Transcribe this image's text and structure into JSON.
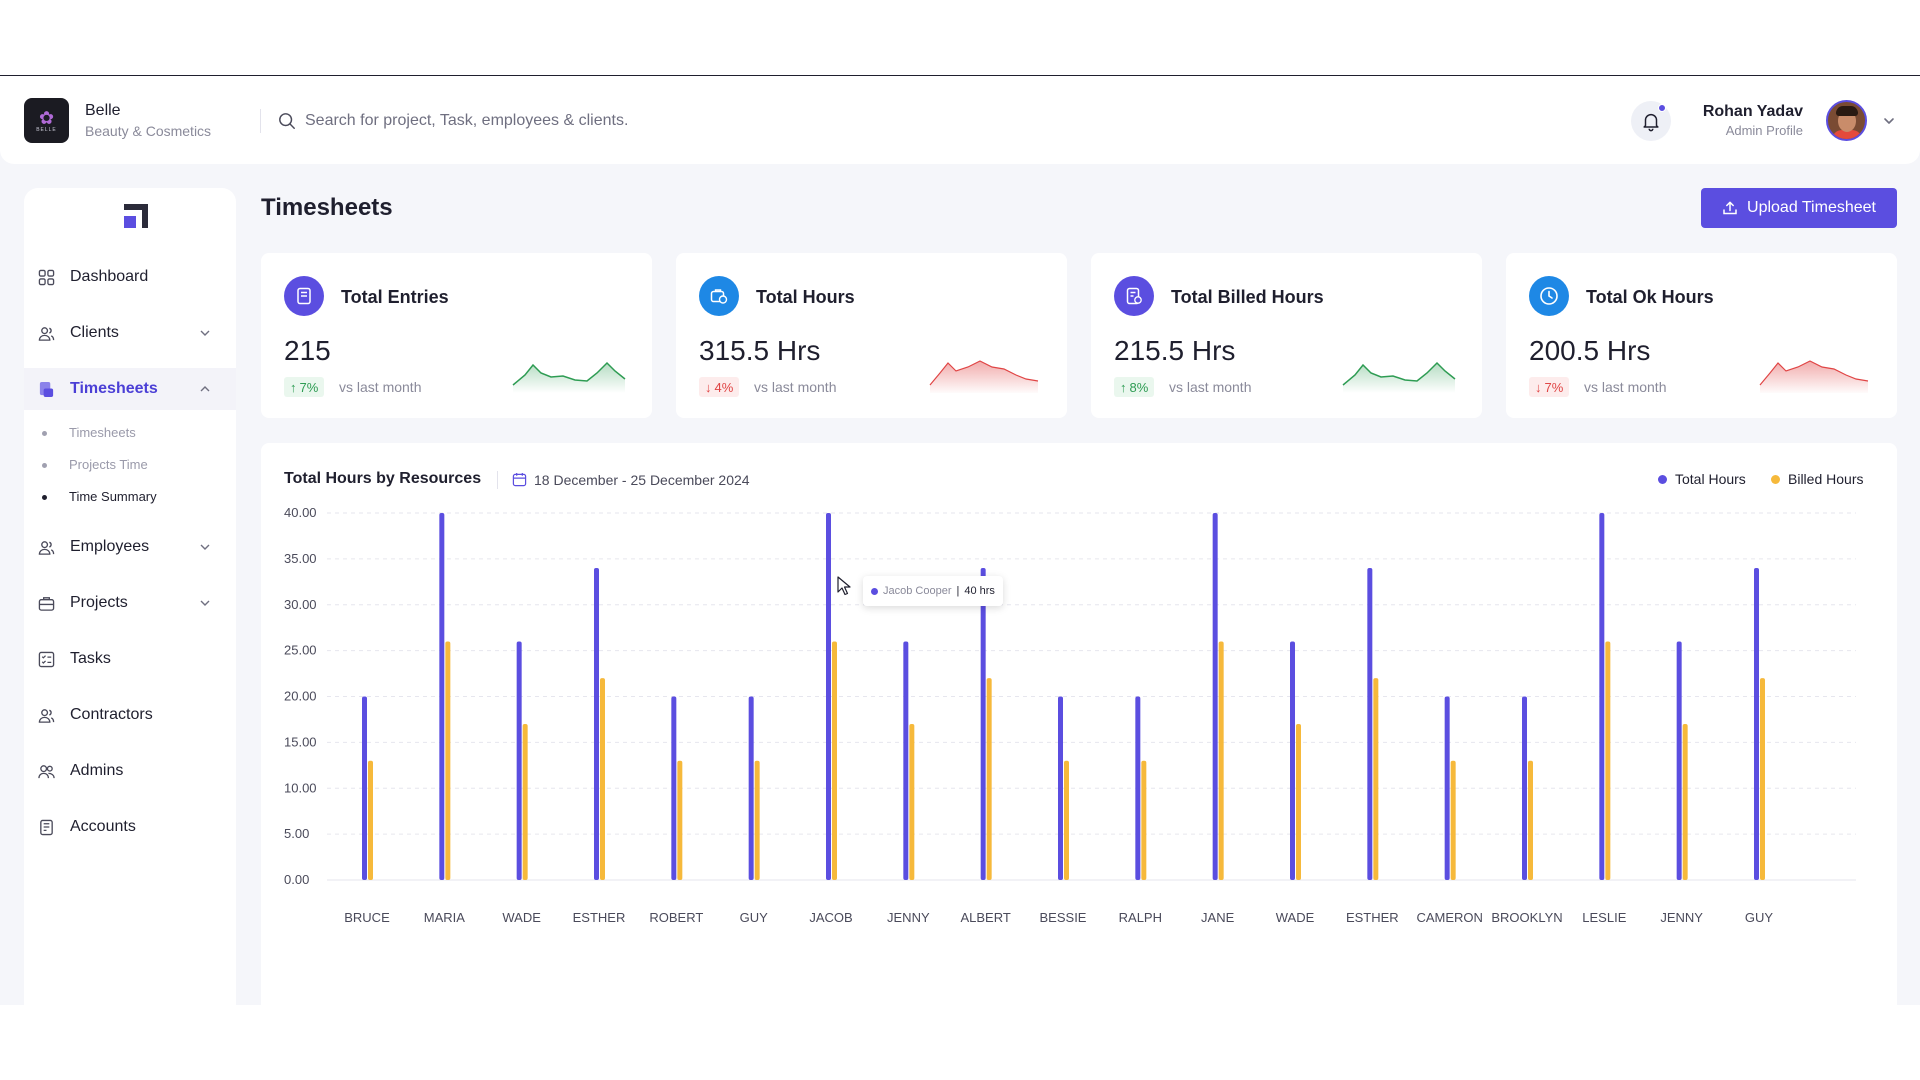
{
  "brand": {
    "name": "Belle",
    "subtitle": "Beauty & Cosmetics",
    "logo_text": "BELLE"
  },
  "search": {
    "placeholder": "Search for project, Task, employees & clients."
  },
  "user": {
    "name": "Rohan Yadav",
    "role": "Admin Profile"
  },
  "sidebar": {
    "items": [
      {
        "label": "Dashboard",
        "icon": "grid-icon"
      },
      {
        "label": "Clients",
        "icon": "users-icon"
      },
      {
        "label": "Timesheets",
        "icon": "timesheet-icon"
      },
      {
        "label": "Employees",
        "icon": "users-icon"
      },
      {
        "label": "Projects",
        "icon": "briefcase-icon"
      },
      {
        "label": "Tasks",
        "icon": "tasks-icon"
      },
      {
        "label": "Contractors",
        "icon": "users-icon"
      },
      {
        "label": "Admins",
        "icon": "users-icon"
      },
      {
        "label": "Accounts",
        "icon": "accounts-icon"
      }
    ],
    "sub_items": [
      {
        "label": "Timesheets"
      },
      {
        "label": "Projects Time"
      },
      {
        "label": "Time Summary"
      }
    ]
  },
  "page": {
    "title": "Timesheets",
    "upload_label": "Upload Timesheet"
  },
  "stats": [
    {
      "title": "Total Entries",
      "value": "215",
      "delta": "7%",
      "direction": "up",
      "vs": "vs last month",
      "color": "#5b4ee0"
    },
    {
      "title": "Total Hours",
      "value": "315.5 Hrs",
      "delta": "4%",
      "direction": "down",
      "vs": "vs last month",
      "color": "#1e88e5"
    },
    {
      "title": "Total Billed Hours",
      "value": "215.5 Hrs",
      "delta": "8%",
      "direction": "up",
      "vs": "vs last month",
      "color": "#5b4ee0"
    },
    {
      "title": "Total Ok Hours",
      "value": "200.5 Hrs",
      "delta": "7%",
      "direction": "down",
      "vs": "vs last month",
      "color": "#1e88e5"
    }
  ],
  "chart": {
    "title": "Total Hours by Resources",
    "date_range": "18 December - 25 December 2024",
    "tooltip": {
      "name": "Jacob Cooper",
      "sep": "|",
      "value": "40 hrs"
    }
  },
  "colors": {
    "total": "#5b4ee0",
    "billed": "#f6b93b",
    "accent": "#5b4ee0",
    "up": "#2e9c53",
    "down": "#e04545"
  },
  "chart_data": {
    "type": "bar",
    "title": "Total Hours by Resources",
    "categories": [
      "BRUCE",
      "MARIA",
      "WADE",
      "ESTHER",
      "ROBERT",
      "GUY",
      "JACOB",
      "JENNY",
      "ALBERT",
      "BESSIE",
      "RALPH",
      "JANE",
      "WADE",
      "ESTHER",
      "CAMERON",
      "BROOKLYN",
      "LESLIE",
      "JENNY",
      "GUY"
    ],
    "series": [
      {
        "name": "Total Hours",
        "values": [
          20,
          40,
          26,
          34,
          20,
          20,
          40,
          26,
          34,
          20,
          20,
          40,
          26,
          34,
          20,
          20,
          40,
          26,
          34
        ]
      },
      {
        "name": "Billed Hours",
        "values": [
          13,
          26,
          17,
          22,
          13,
          13,
          26,
          17,
          22,
          13,
          13,
          26,
          17,
          22,
          13,
          13,
          26,
          17,
          22
        ]
      }
    ],
    "yticks": [
      "0.00",
      "5.00",
      "10.00",
      "15.00",
      "20.00",
      "25.00",
      "30.00",
      "35.00",
      "40.00"
    ],
    "ylim": [
      0,
      40
    ],
    "xlabel": "",
    "ylabel": "",
    "grid": true,
    "legend": "top-right"
  }
}
